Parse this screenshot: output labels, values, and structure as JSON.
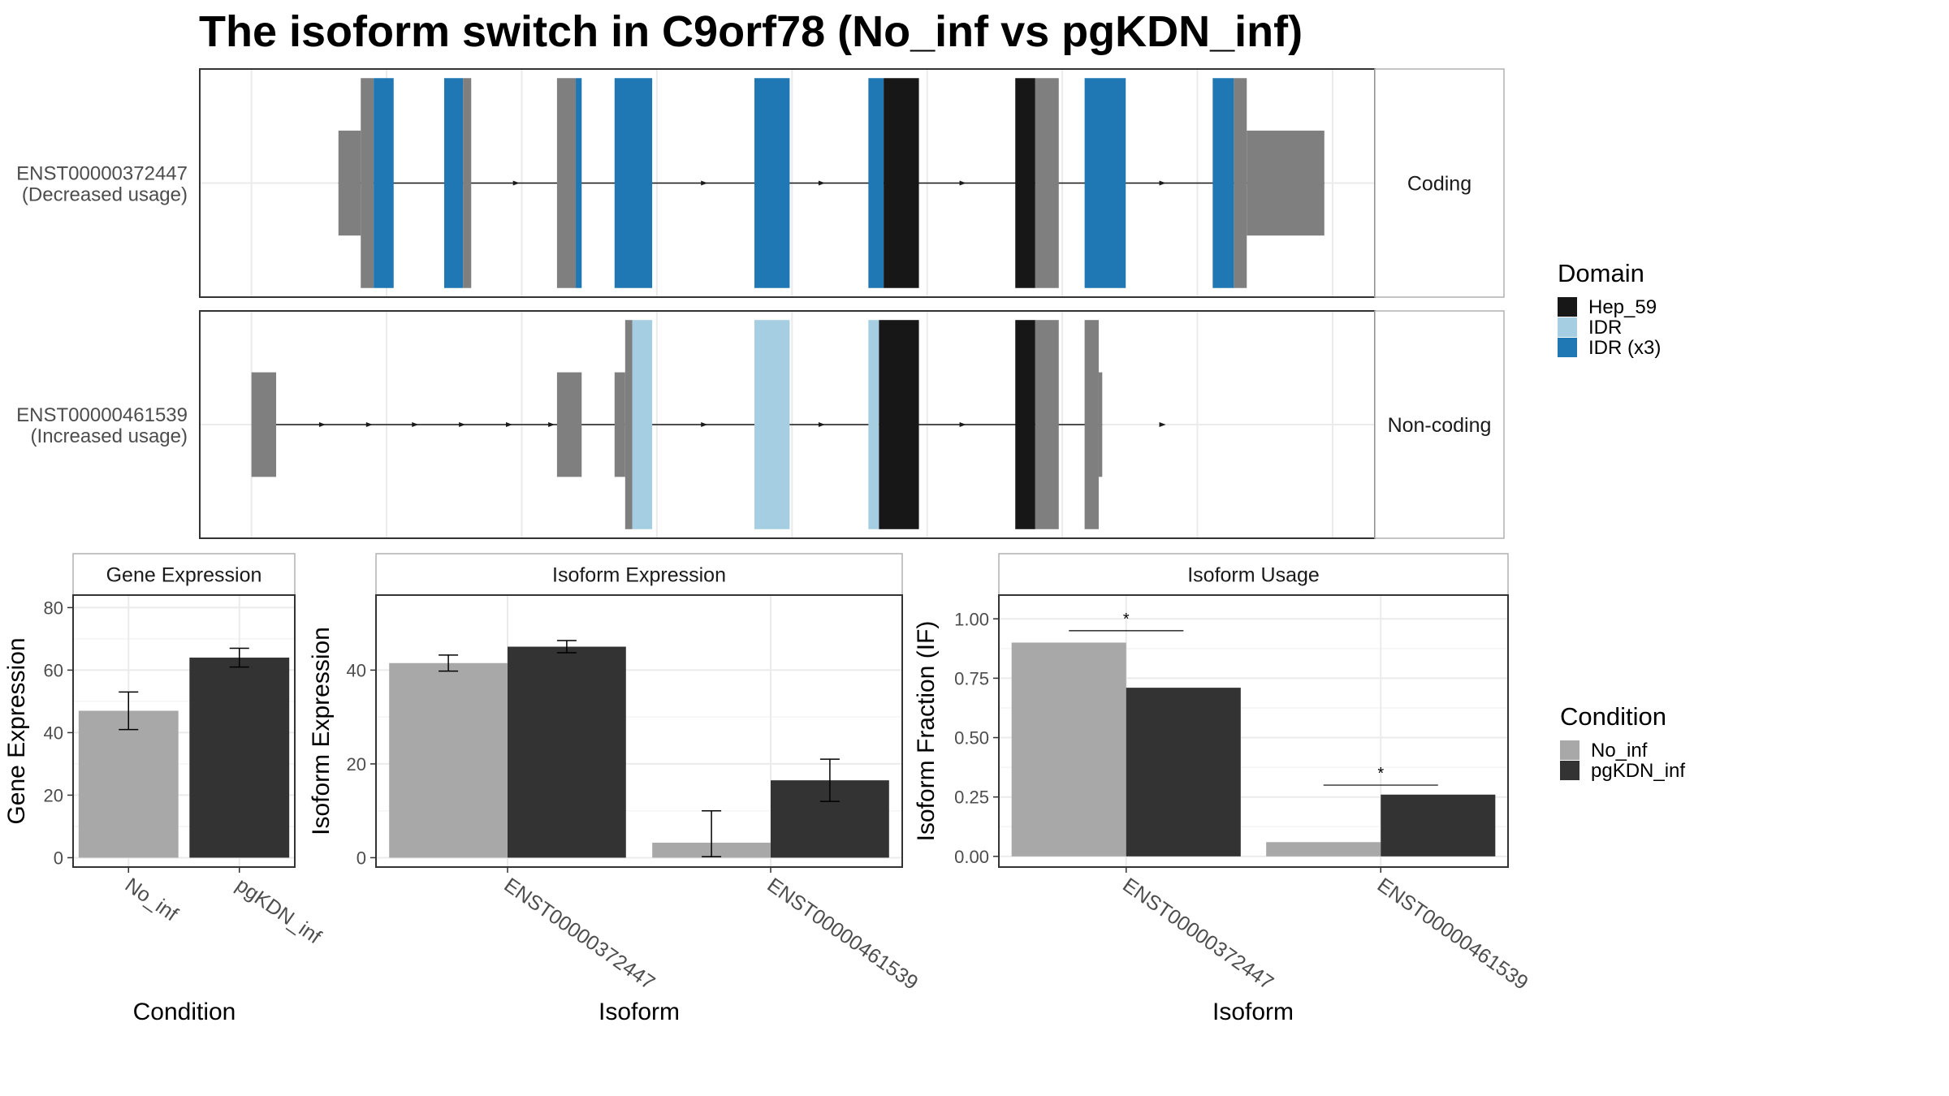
{
  "title": "The isoform switch in C9orf78 (No_inf vs pgKDN_inf)",
  "colors": {
    "utr": "#7f7f7f",
    "hep_59": "#171717",
    "idr": "#a6cee3",
    "idr_x3": "#1f78b4",
    "no_inf": "#a8a8a8",
    "pgkdn_inf": "#333333",
    "grid": "#ebebeb",
    "panel_border": "#333333",
    "strip_border": "#b0b0b0"
  },
  "isoform_panel": {
    "rows": [
      {
        "id": "ENST00000372447",
        "usage": "(Decreased usage)",
        "strip": "Coding",
        "arrows": [
          0.27,
          0.31,
          0.43,
          0.53,
          0.65,
          0.82
        ],
        "features": [
          {
            "s": 0.118,
            "e": 0.137,
            "k": "utr",
            "h": 0.46
          },
          {
            "s": 0.137,
            "e": 0.148,
            "k": "utr",
            "h": 0.92
          },
          {
            "s": 0.148,
            "e": 0.165,
            "k": "idr_x3",
            "h": 0.92
          },
          {
            "s": 0.208,
            "e": 0.224,
            "k": "idr_x3",
            "h": 0.92
          },
          {
            "s": 0.224,
            "e": 0.231,
            "k": "utr",
            "h": 0.92
          },
          {
            "s": 0.304,
            "e": 0.32,
            "k": "utr",
            "h": 0.92
          },
          {
            "s": 0.32,
            "e": 0.325,
            "k": "idr_x3",
            "h": 0.92
          },
          {
            "s": 0.353,
            "e": 0.385,
            "k": "idr_x3",
            "h": 0.92
          },
          {
            "s": 0.472,
            "e": 0.502,
            "k": "idr_x3",
            "h": 0.92
          },
          {
            "s": 0.569,
            "e": 0.582,
            "k": "idr_x3",
            "h": 0.92
          },
          {
            "s": 0.582,
            "e": 0.612,
            "k": "hep_59",
            "h": 0.92
          },
          {
            "s": 0.694,
            "e": 0.711,
            "k": "hep_59",
            "h": 0.92
          },
          {
            "s": 0.711,
            "e": 0.731,
            "k": "utr",
            "h": 0.92
          },
          {
            "s": 0.753,
            "e": 0.788,
            "k": "idr_x3",
            "h": 0.92
          },
          {
            "s": 0.862,
            "e": 0.88,
            "k": "idr_x3",
            "h": 0.92
          },
          {
            "s": 0.88,
            "e": 0.891,
            "k": "utr",
            "h": 0.92
          },
          {
            "s": 0.891,
            "e": 0.957,
            "k": "utr",
            "h": 0.46
          }
        ]
      },
      {
        "id": "ENST00000461539",
        "usage": "(Increased usage)",
        "strip": "Non-coding",
        "arrows": [
          0.105,
          0.145,
          0.184,
          0.224,
          0.264,
          0.3,
          0.43,
          0.53,
          0.65,
          0.82
        ],
        "features": [
          {
            "s": 0.044,
            "e": 0.065,
            "k": "utr",
            "h": 0.46
          },
          {
            "s": 0.304,
            "e": 0.325,
            "k": "utr",
            "h": 0.46
          },
          {
            "s": 0.353,
            "e": 0.362,
            "k": "utr",
            "h": 0.46
          },
          {
            "s": 0.362,
            "e": 0.368,
            "k": "utr",
            "h": 0.92
          },
          {
            "s": 0.368,
            "e": 0.385,
            "k": "idr",
            "h": 0.92
          },
          {
            "s": 0.472,
            "e": 0.502,
            "k": "idr",
            "h": 0.92
          },
          {
            "s": 0.569,
            "e": 0.578,
            "k": "idr",
            "h": 0.92
          },
          {
            "s": 0.578,
            "e": 0.612,
            "k": "hep_59",
            "h": 0.92
          },
          {
            "s": 0.694,
            "e": 0.711,
            "k": "hep_59",
            "h": 0.92
          },
          {
            "s": 0.711,
            "e": 0.731,
            "k": "utr",
            "h": 0.92
          },
          {
            "s": 0.753,
            "e": 0.765,
            "k": "utr",
            "h": 0.92
          },
          {
            "s": 0.765,
            "e": 0.768,
            "k": "utr",
            "h": 0.46
          }
        ]
      }
    ]
  },
  "legend_domain": {
    "title": "Domain",
    "items": [
      {
        "label": "Hep_59",
        "color": "#171717"
      },
      {
        "label": "IDR",
        "color": "#a6cee3"
      },
      {
        "label": "IDR (x3)",
        "color": "#1f78b4"
      }
    ]
  },
  "legend_condition": {
    "title": "Condition",
    "items": [
      {
        "label": "No_inf",
        "color": "#a8a8a8"
      },
      {
        "label": "pgKDN_inf",
        "color": "#333333"
      }
    ]
  },
  "chart_data": [
    {
      "type": "bar",
      "title": "Gene Expression",
      "xlabel": "Condition",
      "ylabel": "Gene Expression",
      "categories": [
        "No_inf",
        "pgKDN_inf"
      ],
      "series": [
        {
          "name": "No_inf",
          "values": [
            47,
            null
          ],
          "err_low": [
            41,
            null
          ],
          "err_high": [
            53,
            null
          ]
        },
        {
          "name": "pgKDN_inf",
          "values": [
            null,
            64
          ],
          "err_low": [
            null,
            61
          ],
          "err_high": [
            null,
            67
          ]
        }
      ],
      "ylim": [
        -3,
        84
      ],
      "yticks": [
        0,
        20,
        40,
        60,
        80
      ]
    },
    {
      "type": "bar",
      "title": "Isoform Expression",
      "xlabel": "Isoform",
      "ylabel": "Isoform Expression",
      "categories": [
        "ENST00000372447",
        "ENST00000461539"
      ],
      "series": [
        {
          "name": "No_inf",
          "values": [
            41.5,
            3.2
          ],
          "err_low": [
            39.8,
            0.2
          ],
          "err_high": [
            43.2,
            10.0
          ]
        },
        {
          "name": "pgKDN_inf",
          "values": [
            45.0,
            16.5
          ],
          "err_low": [
            43.7,
            12.0
          ],
          "err_high": [
            46.3,
            21.0
          ]
        }
      ],
      "ylim": [
        -2,
        56
      ],
      "yticks": [
        0,
        20,
        40
      ]
    },
    {
      "type": "bar",
      "title": "Isoform Usage",
      "xlabel": "Isoform",
      "ylabel": "Isoform Fraction (IF)",
      "categories": [
        "ENST00000372447",
        "ENST00000461539"
      ],
      "series": [
        {
          "name": "No_inf",
          "values": [
            0.9,
            0.06
          ]
        },
        {
          "name": "pgKDN_inf",
          "values": [
            0.71,
            0.26
          ]
        }
      ],
      "significance": [
        {
          "category": "ENST00000372447",
          "label": "*",
          "y": 0.95
        },
        {
          "category": "ENST00000461539",
          "label": "*",
          "y": 0.3
        }
      ],
      "ylim": [
        -0.045,
        1.1
      ],
      "yticks": [
        0.0,
        0.25,
        0.5,
        0.75,
        1.0
      ],
      "ytick_labels": [
        "0.00",
        "0.25",
        "0.50",
        "0.75",
        "1.00"
      ]
    }
  ]
}
